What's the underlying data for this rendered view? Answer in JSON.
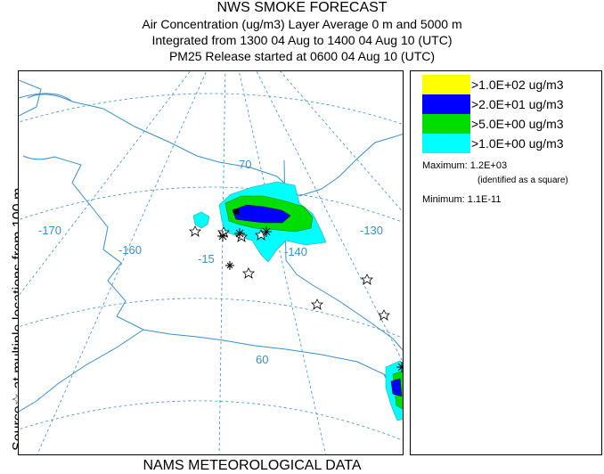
{
  "header": {
    "title": "NWS SMOKE FORECAST",
    "line2": "Air Concentration (ug/m3) Layer Average     0 m and  5000 m",
    "line3": "Integrated from 1300 04 Aug to 1400 04 Aug 10 (UTC)",
    "line4": "PM25 Release started at 0600 04 Aug 10 (UTC)"
  },
  "side_label": {
    "prefix": "Source",
    "star_symbol": "☆",
    "rest": " at multiple locations     from   100 m"
  },
  "bottom_label": "NAMS METEOROLOGICAL DATA",
  "legend": {
    "items": [
      {
        "label": ">1.0E+02 ug/m3",
        "color": "#ffff00"
      },
      {
        "label": ">2.0E+01 ug/m3",
        "color": "#0000ff"
      },
      {
        "label": ">5.0E+00 ug/m3",
        "color": "#00dd00"
      },
      {
        "label": ">1.0E+00 ug/m3",
        "color": "#00ffff"
      }
    ],
    "maximum_label": "Maximum:",
    "maximum_value": "1.2E+03",
    "maximum_note": "(identified as a square)",
    "minimum_label": "Minimum:",
    "minimum_value": "1.1E-11"
  },
  "map": {
    "gridline_color": "#3a8fc8",
    "coastline_color": "#3a8fc8",
    "grid_labels": {
      "lon_170": "-170",
      "lon_160": "-160",
      "lon_150": "-15",
      "lon_140": "-140",
      "lon_130": "-130",
      "lat_70": "70",
      "lat_60": "60"
    },
    "plume_levels": [
      "cyan",
      "green",
      "blue"
    ],
    "source_marker": "star"
  }
}
